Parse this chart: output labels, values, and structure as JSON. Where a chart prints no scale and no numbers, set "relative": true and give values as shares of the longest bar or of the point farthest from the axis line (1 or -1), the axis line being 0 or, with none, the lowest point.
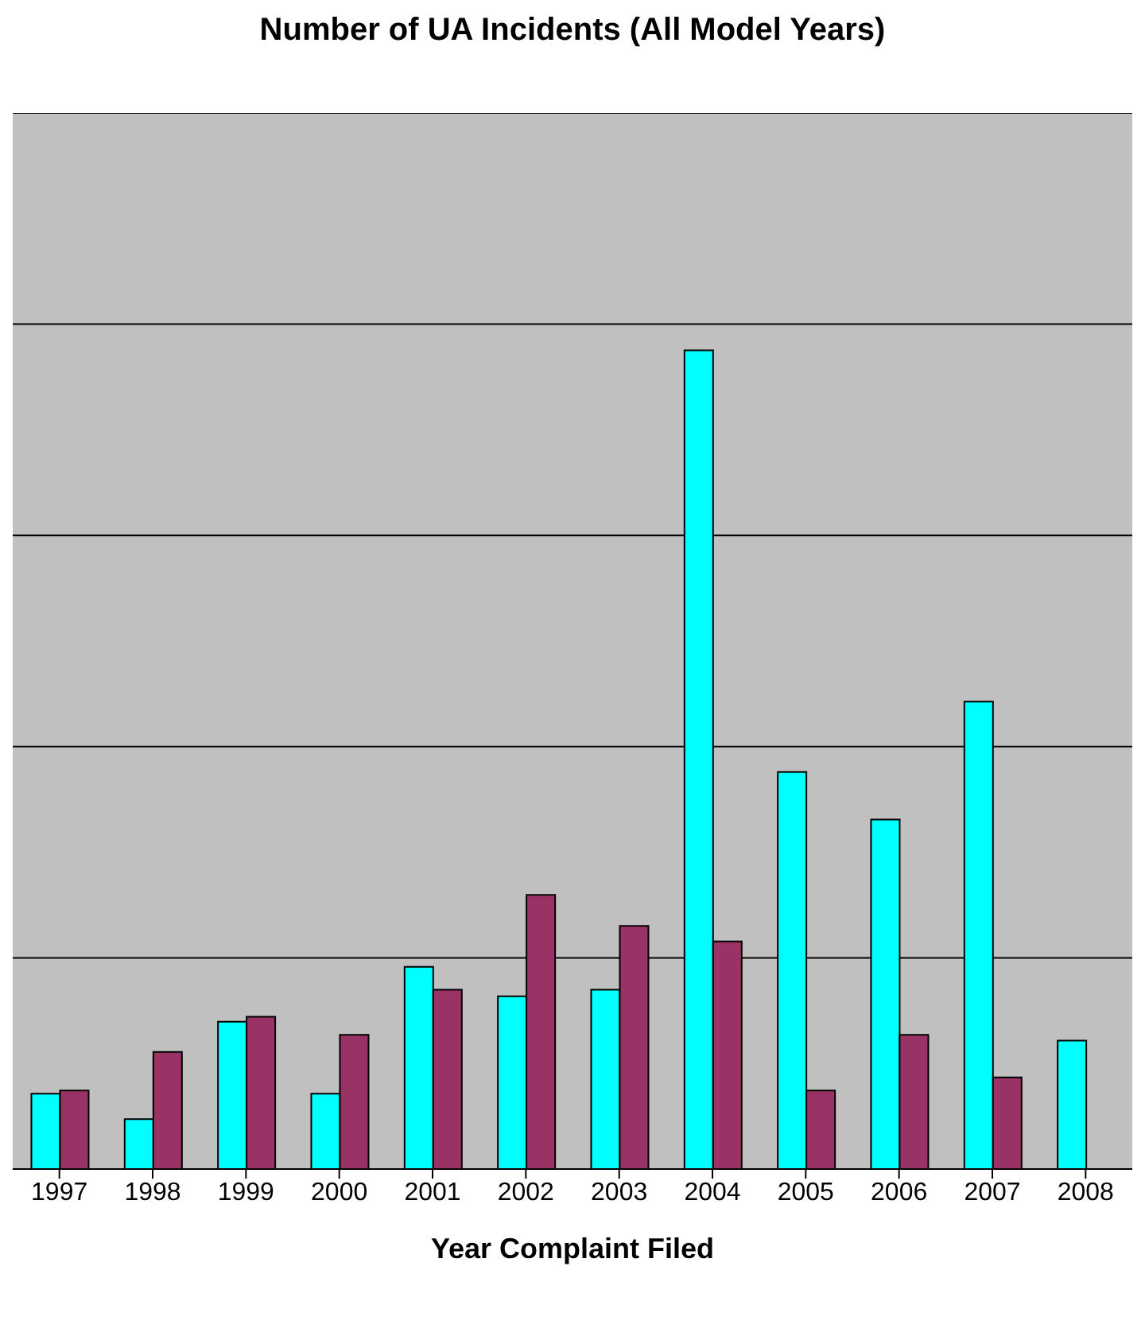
{
  "chart_data": {
    "type": "bar",
    "title": "Number of UA Incidents (All Model Years)",
    "xlabel": "Year Complaint Filed",
    "relative": true,
    "grid": "y",
    "categories": [
      "1997",
      "1998",
      "1999",
      "2000",
      "2001",
      "2002",
      "2003",
      "2004",
      "2005",
      "2006",
      "2007",
      "2008"
    ],
    "series": [
      {
        "color": "#00ffff",
        "values": [
          0.092,
          0.061,
          0.18,
          0.092,
          0.247,
          0.211,
          0.219,
          1,
          0.485,
          0.427,
          0.571,
          0.157
        ]
      },
      {
        "color": "#993366",
        "values": [
          0.096,
          0.143,
          0.186,
          0.164,
          0.219,
          0.335,
          0.297,
          0.278,
          0.096,
          0.164,
          0.112,
          null
        ]
      }
    ]
  }
}
